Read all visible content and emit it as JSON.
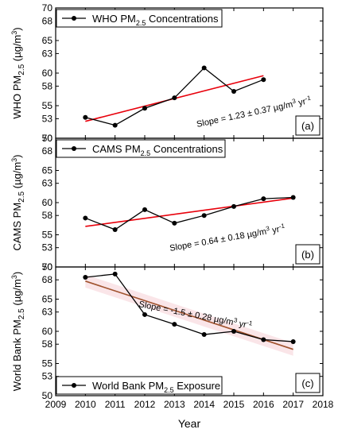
{
  "chart_data": [
    {
      "type": "line",
      "panel_tag": "(a)",
      "legend": {
        "pre": "WHO PM",
        "sub": "2.5",
        "post": " Concentrations"
      },
      "ylabel": {
        "pre": "WHO PM",
        "sub": "2.5",
        "post": " (µg/m",
        "sup": "3",
        "end": ")"
      },
      "slope": {
        "pre": "Slope = 1.23 ± 0.37 µg/m",
        "sup": "3",
        "post": " yr",
        "sup2": "-1"
      },
      "ylim": [
        50,
        70
      ],
      "ytick_labels": [
        "50",
        "53",
        "55",
        "58",
        "60",
        "63",
        "65",
        "68",
        "70"
      ],
      "series": [
        {
          "x": [
            2010,
            2011,
            2012,
            2013,
            2014,
            2015,
            2016
          ],
          "y": [
            53.2,
            52.0,
            54.6,
            56.2,
            60.8,
            57.2,
            59.0
          ]
        }
      ],
      "fit": {
        "x": [
          2010,
          2016
        ],
        "y": [
          52.6,
          59.6
        ],
        "color": "#e8000b"
      },
      "line_color": "#000000",
      "legend_position": "top-left"
    },
    {
      "type": "line",
      "panel_tag": "(b)",
      "legend": {
        "pre": "CAMS PM",
        "sub": "2.5",
        "post": " Concentrations"
      },
      "ylabel": {
        "pre": "CAMS PM",
        "sub": "2.5",
        "post": " (µg/m",
        "sup": "3",
        "end": ")"
      },
      "slope": {
        "pre": "Slope = 0.64 ± 0.18 µg/m",
        "sup": "3",
        "post": " yr",
        "sup2": "-1"
      },
      "ylim": [
        50,
        70
      ],
      "ytick_labels": [
        "50",
        "53",
        "55",
        "58",
        "60",
        "63",
        "65",
        "68",
        "70"
      ],
      "series": [
        {
          "x": [
            2010,
            2011,
            2012,
            2013,
            2014,
            2015,
            2016,
            2017
          ],
          "y": [
            57.6,
            55.8,
            58.9,
            56.8,
            58.0,
            59.4,
            60.6,
            60.8
          ]
        }
      ],
      "fit": {
        "x": [
          2010,
          2017
        ],
        "y": [
          56.3,
          60.7
        ],
        "color": "#e8000b"
      },
      "line_color": "#000000",
      "legend_position": "top-left"
    },
    {
      "type": "line",
      "panel_tag": "(c)",
      "legend": {
        "pre": "World Bank PM",
        "sub": "2.5",
        "post": " Exposure"
      },
      "ylabel": {
        "pre": "World Bank PM",
        "sub": "2.5",
        "post": " (µg/m",
        "sup": "3",
        "end": ")"
      },
      "slope": {
        "pre": "Slope = -1.5 ± 0.28 µg/m",
        "sup": "3",
        "post": " yr",
        "sup2": "-1"
      },
      "ylim": [
        50,
        70
      ],
      "ytick_labels": [
        "50",
        "53",
        "55",
        "58",
        "60",
        "63",
        "65",
        "68",
        "70"
      ],
      "series": [
        {
          "x": [
            2010,
            2011,
            2012,
            2013,
            2014,
            2015,
            2016,
            2017
          ],
          "y": [
            68.4,
            68.9,
            62.6,
            61.1,
            59.5,
            60.0,
            58.7,
            58.4
          ]
        }
      ],
      "fit": {
        "x": [
          2010,
          2017
        ],
        "y": [
          67.8,
          57.2
        ],
        "color": "#a0522d"
      },
      "confidence_band_color": "#f4c6cc",
      "line_color": "#000000",
      "legend_position": "bottom-left"
    }
  ],
  "x_axis": {
    "xlabel": "Year",
    "xlim": [
      2009,
      2018
    ],
    "tick_labels": [
      "2009",
      "2010",
      "2011",
      "2012",
      "2013",
      "2014",
      "2015",
      "2016",
      "2017",
      "2018"
    ]
  }
}
